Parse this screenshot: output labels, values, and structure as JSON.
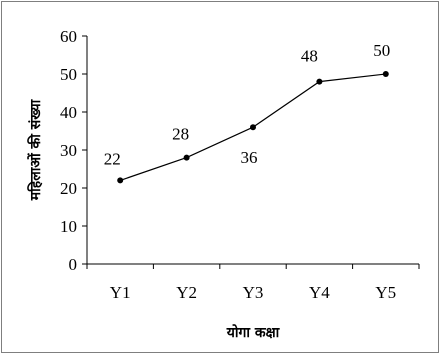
{
  "chart_data": {
    "type": "line",
    "categories": [
      "Y1",
      "Y2",
      "Y3",
      "Y4",
      "Y5"
    ],
    "series": [
      {
        "values": [
          22,
          28,
          36,
          48,
          50
        ]
      }
    ],
    "data_labels": [
      "22",
      "28",
      "36",
      "48",
      "50"
    ],
    "xlabel": "योगा कक्षा",
    "ylabel": "महिलाओं की संख्या",
    "ylim": [
      0,
      60
    ],
    "yticks": [
      0,
      10,
      20,
      30,
      40,
      50,
      60
    ],
    "grid": false,
    "legend": "none",
    "line_color": "#000000"
  }
}
